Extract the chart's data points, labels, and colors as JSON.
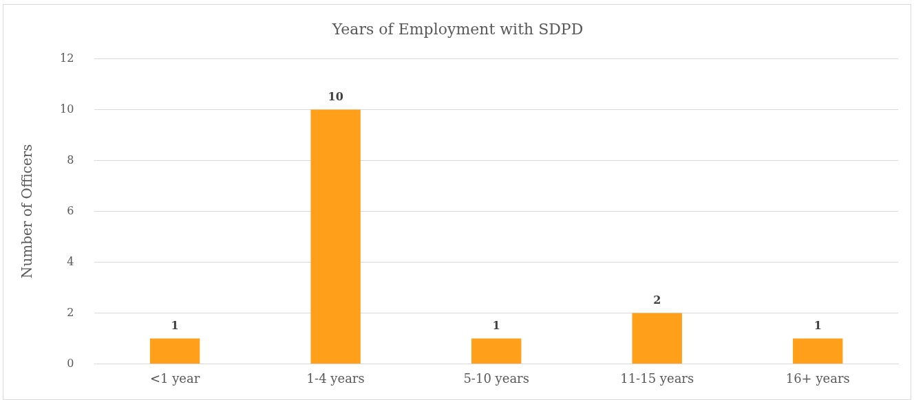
{
  "chart_data": {
    "type": "bar",
    "title": "Years of Employment with SDPD",
    "ylabel": "Number of Officers",
    "categories": [
      "<1 year",
      "1-4 years",
      "5-10 years",
      "11-15 years",
      "16+ years"
    ],
    "values": [
      1,
      10,
      1,
      2,
      1
    ],
    "color": "#ff9f1a",
    "ylim": [
      0,
      12
    ],
    "yticks": [
      0,
      2,
      4,
      6,
      8,
      10,
      12
    ],
    "grid": "y",
    "data_labels": true,
    "legend": false
  }
}
